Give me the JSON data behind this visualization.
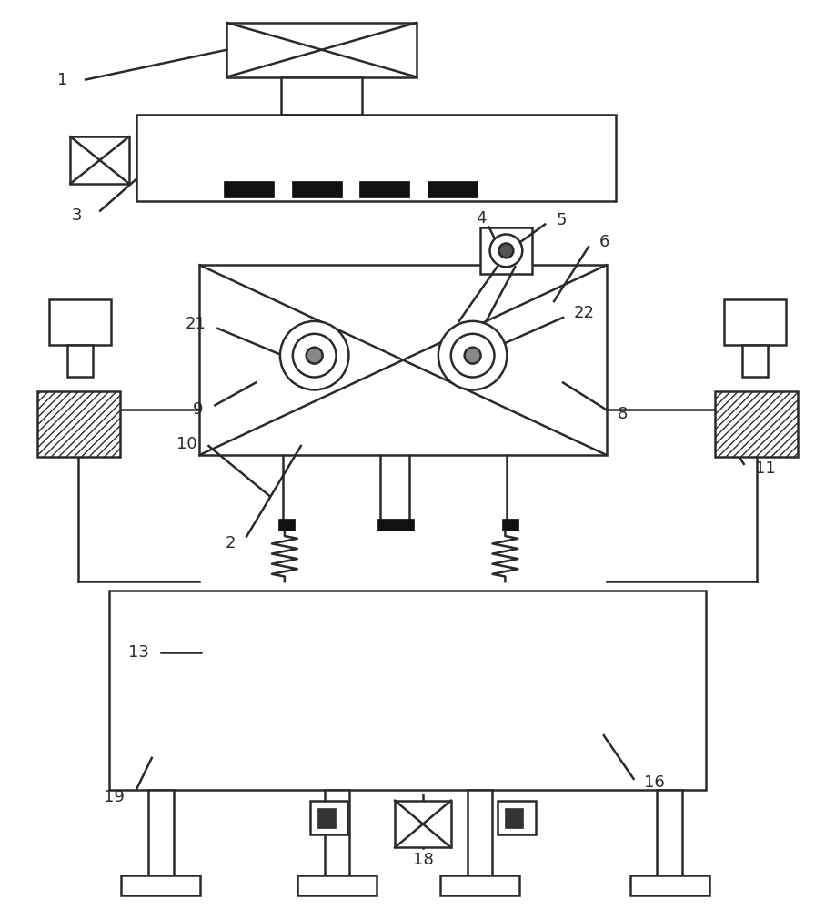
{
  "bg_color": "#ffffff",
  "line_color": "#2a2a2a",
  "dark_fill": "#111111",
  "label_color": "#2a2a2a",
  "fig_width": 9.18,
  "fig_height": 10.0
}
